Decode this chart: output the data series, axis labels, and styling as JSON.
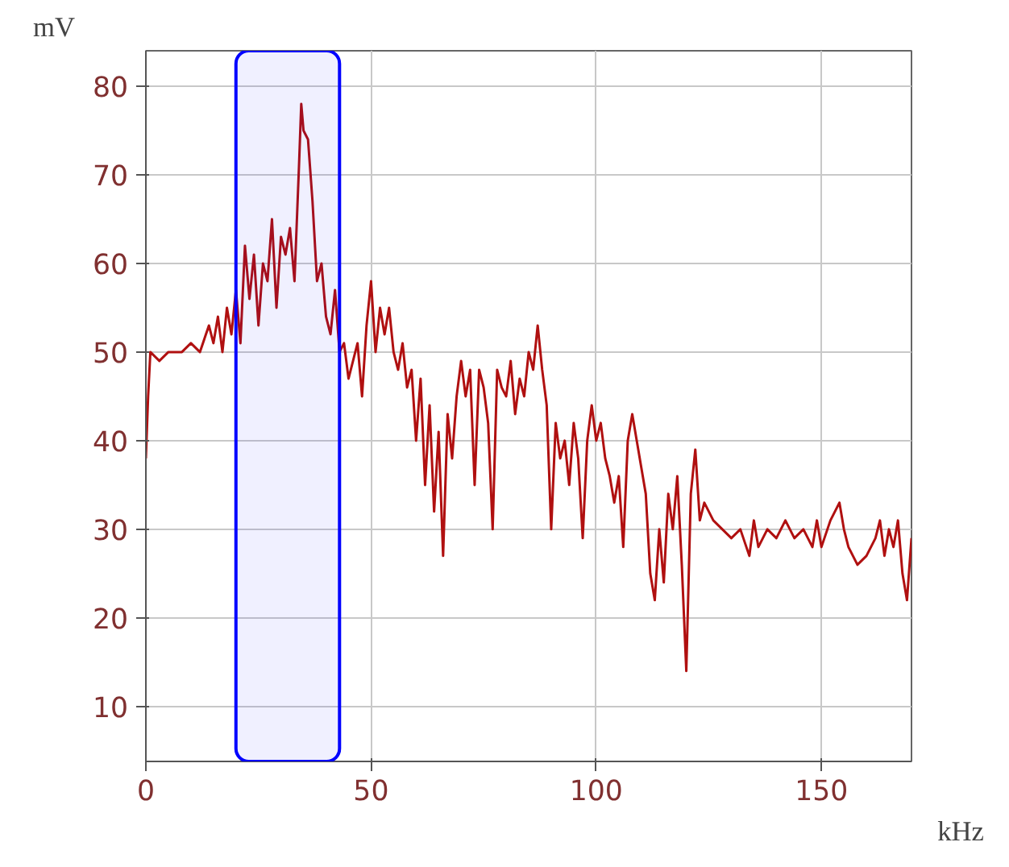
{
  "chart_data": {
    "type": "line",
    "xlabel": "kHz",
    "ylabel": "mV",
    "x": [
      0,
      0.5,
      1,
      3,
      5,
      8,
      10,
      12,
      14,
      15,
      16,
      17,
      18,
      19,
      20,
      21,
      22,
      23,
      24,
      25,
      26,
      27,
      28,
      29,
      30,
      31,
      32,
      33,
      34,
      34.5,
      35,
      36,
      37,
      38,
      39,
      40,
      41,
      42,
      43,
      44,
      45,
      46,
      47,
      48,
      49,
      50,
      51,
      52,
      53,
      54,
      55,
      56,
      57,
      58,
      59,
      60,
      61,
      62,
      63,
      64,
      65,
      66,
      67,
      68,
      69,
      70,
      71,
      72,
      73,
      74,
      75,
      76,
      77,
      78,
      79,
      80,
      81,
      82,
      83,
      84,
      85,
      86,
      87,
      88,
      89,
      90,
      91,
      92,
      93,
      94,
      95,
      96,
      97,
      98,
      99,
      100,
      101,
      102,
      103,
      104,
      105,
      106,
      107,
      108,
      109,
      110,
      111,
      112,
      113,
      114,
      115,
      116,
      117,
      118,
      119,
      120,
      121,
      122,
      123,
      124,
      125,
      126,
      128,
      130,
      132,
      134,
      135,
      136,
      138,
      140,
      142,
      144,
      146,
      148,
      149,
      150,
      152,
      154,
      155,
      156,
      158,
      160,
      162,
      163,
      164,
      165,
      166,
      167,
      168,
      169,
      170
    ],
    "series": [
      {
        "color": "#b01010",
        "values": [
          38,
          45,
          50,
          49,
          50,
          50,
          51,
          50,
          53,
          51,
          54,
          50,
          55,
          52,
          57,
          51,
          62,
          56,
          61,
          53,
          60,
          58,
          65,
          55,
          63,
          61,
          64,
          58,
          71,
          78,
          75,
          74,
          67,
          58,
          60,
          54,
          52,
          57,
          50,
          51,
          47,
          49,
          51,
          45,
          53,
          58,
          50,
          55,
          52,
          55,
          50,
          48,
          51,
          46,
          48,
          40,
          47,
          35,
          44,
          32,
          41,
          27,
          43,
          38,
          45,
          49,
          45,
          48,
          35,
          48,
          46,
          42,
          30,
          48,
          46,
          45,
          49,
          43,
          47,
          45,
          50,
          48,
          53,
          48,
          44,
          30,
          42,
          38,
          40,
          35,
          42,
          38,
          29,
          40,
          44,
          40,
          42,
          38,
          36,
          33,
          36,
          28,
          40,
          43,
          40,
          37,
          34,
          25,
          22,
          30,
          24,
          34,
          30,
          36,
          26,
          14,
          34,
          39,
          31,
          33,
          32,
          31,
          30,
          29,
          30,
          27,
          31,
          28,
          30,
          29,
          31,
          29,
          30,
          28,
          31,
          28,
          31,
          33,
          30,
          28,
          26,
          27,
          29,
          31,
          27,
          30,
          28,
          31,
          25,
          22,
          29
        ]
      }
    ],
    "xlim": [
      0,
      170
    ],
    "ylim": [
      3.8,
      84
    ],
    "xticks": [
      0,
      50,
      100,
      150
    ],
    "yticks": [
      10,
      20,
      30,
      40,
      50,
      60,
      70,
      80
    ],
    "grid": true,
    "bands": [
      {
        "axis": "x",
        "from": 20,
        "to": 43,
        "color": "#0000ff"
      }
    ]
  }
}
